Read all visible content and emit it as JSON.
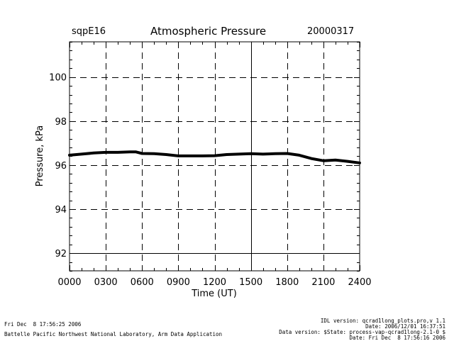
{
  "header": {
    "site": "sqpE16",
    "title": "Atmospheric Pressure",
    "date": "20000317"
  },
  "footer": {
    "left_line1": "Fri Dec  8 17:56:25 2006",
    "left_line2": "Battelle Pacific Northwest National Laboratory, Arm Data Application",
    "right_line1": "IDL version: qcrad1long_plots.pro,v 1.1",
    "right_line2": "Date: 2006/12/01 16:37:51",
    "right_line3": "Data version: $State: process-vap-qcrad1long-2.1-0 $",
    "right_line4": "Date: Fri Dec  8 17:56:16 2006"
  },
  "chart_data": {
    "type": "line",
    "title": "Atmospheric Pressure",
    "xlabel": "Time (UT)",
    "ylabel": "Pressure, kPa",
    "xlim": [
      0,
      2400
    ],
    "ylim": [
      91.2,
      101.6
    ],
    "x_ticks": [
      0,
      300,
      600,
      900,
      1200,
      1500,
      1800,
      2100,
      2400
    ],
    "x_tick_labels": [
      "0000",
      "0300",
      "0600",
      "0900",
      "1200",
      "1500",
      "1800",
      "2100",
      "2400"
    ],
    "y_ticks": [
      92,
      94,
      96,
      98,
      100
    ],
    "y_tick_labels": [
      "92",
      "94",
      "96",
      "98",
      "100"
    ],
    "grid": true,
    "series": [
      {
        "x": [
          0,
          100,
          200,
          300,
          400,
          500,
          550,
          600,
          700,
          800,
          900,
          1000,
          1100,
          1200,
          1300,
          1400,
          1500,
          1600,
          1700,
          1800,
          1900,
          2000,
          2100,
          2200,
          2300,
          2400
        ],
        "y": [
          96.45,
          96.5,
          96.55,
          96.58,
          96.58,
          96.6,
          96.6,
          96.53,
          96.52,
          96.48,
          96.42,
          96.42,
          96.42,
          96.43,
          96.48,
          96.5,
          96.52,
          96.5,
          96.52,
          96.53,
          96.45,
          96.3,
          96.2,
          96.23,
          96.17,
          96.1
        ],
        "color": "#000000"
      }
    ]
  }
}
